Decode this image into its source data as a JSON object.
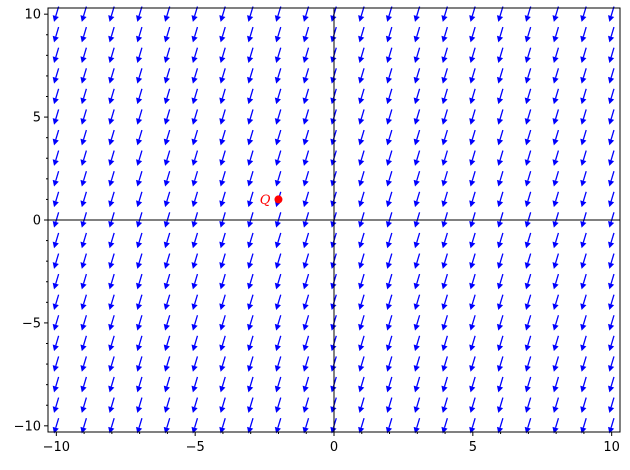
{
  "chart_data": {
    "type": "vector_field",
    "title": "",
    "xlabel": "",
    "ylabel": "",
    "xlim": [
      -10.3,
      10.3
    ],
    "ylim": [
      -10.3,
      10.3
    ],
    "grid": false,
    "axes_through_origin": true,
    "x_ticks": [
      {
        "value": -10,
        "label": "−10"
      },
      {
        "value": -5,
        "label": "−5"
      },
      {
        "value": 0,
        "label": "0"
      },
      {
        "value": 5,
        "label": "5"
      },
      {
        "value": 10,
        "label": "10"
      }
    ],
    "y_ticks": [
      {
        "value": 10,
        "label": "10"
      },
      {
        "value": 5,
        "label": "5"
      },
      {
        "value": 0,
        "label": "0"
      },
      {
        "value": -5,
        "label": "−5"
      },
      {
        "value": -10,
        "label": "−10"
      }
    ],
    "field": {
      "x_range": [
        -10,
        10
      ],
      "y_range": [
        -10,
        10
      ],
      "samples_per_axis": 21,
      "vector": {
        "dx": -0.3,
        "dy": -1.0
      },
      "color": "#0000ff"
    },
    "points": [
      {
        "label": "Q",
        "x": -2,
        "y": 1,
        "color": "#ff0000"
      }
    ]
  }
}
